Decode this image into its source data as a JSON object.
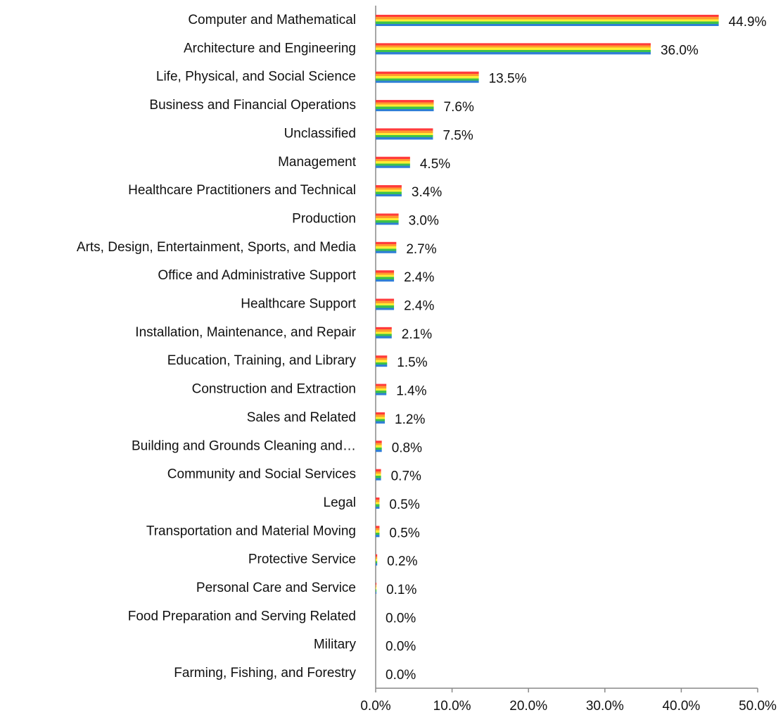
{
  "chart_data": {
    "type": "bar",
    "orientation": "horizontal",
    "categories": [
      "Computer and Mathematical",
      "Architecture and Engineering",
      "Life, Physical, and Social Science",
      "Business and Financial Operations",
      "Unclassified",
      "Management",
      "Healthcare Practitioners and Technical",
      "Production",
      "Arts, Design, Entertainment, Sports, and Media",
      "Office and Administrative Support",
      "Healthcare Support",
      "Installation, Maintenance, and Repair",
      "Education, Training, and Library",
      "Construction and Extraction",
      "Sales and Related",
      "Building and Grounds Cleaning and…",
      "Community and Social Services",
      "Legal",
      "Transportation and Material Moving",
      "Protective Service",
      "Personal Care and Service",
      "Food Preparation and Serving Related",
      "Military",
      "Farming, Fishing, and Forestry"
    ],
    "values": [
      44.9,
      36.0,
      13.5,
      7.6,
      7.5,
      4.5,
      3.4,
      3.0,
      2.7,
      2.4,
      2.4,
      2.1,
      1.5,
      1.4,
      1.2,
      0.8,
      0.7,
      0.5,
      0.5,
      0.2,
      0.1,
      0.0,
      0.0,
      0.0
    ],
    "value_labels": [
      "44.9%",
      "36.0%",
      "13.5%",
      "7.6%",
      "7.5%",
      "4.5%",
      "3.4%",
      "3.0%",
      "2.7%",
      "2.4%",
      "2.4%",
      "2.1%",
      "1.5%",
      "1.4%",
      "1.2%",
      "0.8%",
      "0.7%",
      "0.5%",
      "0.5%",
      "0.2%",
      "0.1%",
      "0.0%",
      "0.0%",
      "0.0%"
    ],
    "colors": [
      "#ff3b3b",
      "#ff9a2e",
      "#ffee33",
      "#3cc24a",
      "#2f7fd6"
    ],
    "xlim": [
      0,
      50
    ],
    "xticks": [
      {
        "value": 0,
        "label": "0.0%"
      },
      {
        "value": 10,
        "label": "10.0%"
      },
      {
        "value": 20,
        "label": "20.0%"
      },
      {
        "value": 30,
        "label": "30.0%"
      },
      {
        "value": 40,
        "label": "40.0%"
      },
      {
        "value": 50,
        "label": "50.0%"
      }
    ],
    "grid": false
  }
}
